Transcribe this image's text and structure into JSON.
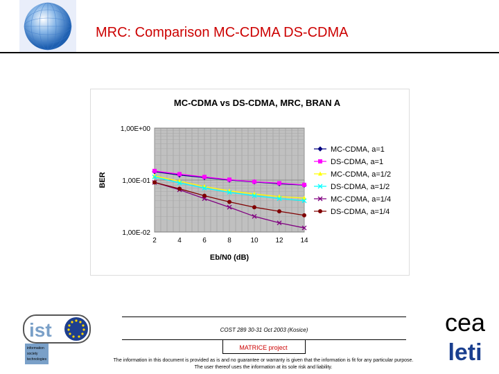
{
  "header": {
    "title": "MRC: Comparison MC-CDMA DS-CDMA"
  },
  "chart_data": {
    "type": "line",
    "title": "MC-CDMA vs DS-CDMA, MRC, BRAN A",
    "xlabel": "Eb/N0 (dB)",
    "ylabel": "BER",
    "x": [
      2,
      4,
      6,
      8,
      10,
      12,
      14
    ],
    "xlim": [
      2,
      14
    ],
    "ylim": [
      0.01,
      1
    ],
    "yscale": "log",
    "xticks": [
      "2",
      "4",
      "6",
      "8",
      "10",
      "12",
      "14"
    ],
    "yticks": [
      {
        "value": 1,
        "label": "1,00E+00"
      },
      {
        "value": 0.1,
        "label": "1,00E-01"
      },
      {
        "value": 0.01,
        "label": "1,00E-02"
      }
    ],
    "grid": true,
    "legend": "right",
    "series": [
      {
        "name": "MC-CDMA, a=1",
        "color": "#000080",
        "marker": "diamond",
        "values": [
          0.145,
          0.125,
          0.112,
          0.1,
          0.092,
          0.085,
          0.08
        ]
      },
      {
        "name": "DS-CDMA, a=1",
        "color": "#ff00ff",
        "marker": "square",
        "values": [
          0.15,
          0.13,
          0.115,
          0.102,
          0.093,
          0.087,
          0.081
        ]
      },
      {
        "name": "MC-CDMA, a=1/2",
        "color": "#ffff00",
        "marker": "triangle",
        "values": [
          0.12,
          0.095,
          0.075,
          0.062,
          0.054,
          0.048,
          0.045
        ]
      },
      {
        "name": "DS-CDMA, a=1/2",
        "color": "#00ffff",
        "marker": "x",
        "values": [
          0.115,
          0.088,
          0.07,
          0.058,
          0.05,
          0.044,
          0.04
        ]
      },
      {
        "name": "MC-CDMA, a=1/4",
        "color": "#800080",
        "marker": "x",
        "values": [
          0.09,
          0.065,
          0.044,
          0.03,
          0.02,
          0.015,
          0.012
        ]
      },
      {
        "name": "DS-CDMA, a=1/4",
        "color": "#800000",
        "marker": "circle",
        "values": [
          0.09,
          0.068,
          0.05,
          0.038,
          0.03,
          0.025,
          0.021
        ]
      }
    ]
  },
  "footer": {
    "conference": "COST 289 30-31 Oct 2003 (Kosice)",
    "project": "MATRICE project",
    "disclaimer": "The information in this document is provided as is and no guarantee or warranty is given that the information is fit for any particular purpose. The user thereof uses the information at its sole risk and liability."
  },
  "logos": {
    "ist": {
      "text": "ist",
      "subtext": "information society technologies"
    },
    "cea": {
      "top": "cea",
      "bottom": "leti"
    }
  },
  "colors": {
    "title": "#cc0000",
    "plot_bg": "#c0c0c0",
    "cea_blue": "#1a3f8f"
  }
}
